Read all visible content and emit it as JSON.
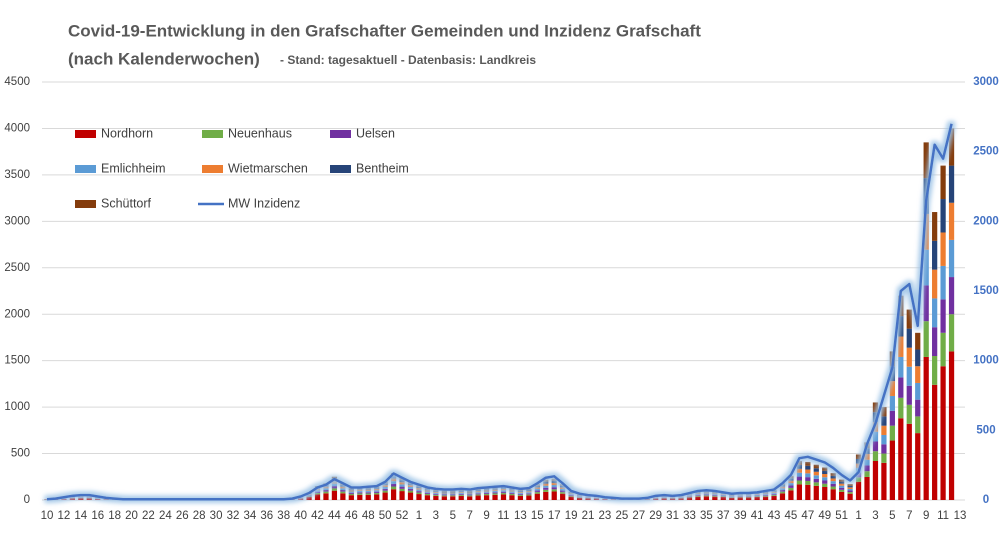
{
  "chart_data": {
    "type": "bar",
    "title": "Covid-19-Entwicklung  in den Grafschafter Gemeinden und Inzidenz Grafschaft",
    "title_line2": "(nach Kalenderwochen)",
    "subtitle": " - Stand: tagesaktuell - Datenbasis: Landkreis",
    "stacked": true,
    "grid": true,
    "legend": "upper left",
    "categories": [
      "10",
      null,
      "12",
      null,
      "14",
      null,
      "16",
      null,
      "18",
      null,
      "20",
      null,
      "22",
      null,
      "24",
      null,
      "26",
      null,
      "28",
      null,
      "30",
      null,
      "32",
      null,
      "34",
      null,
      "36",
      null,
      "38",
      null,
      "40",
      null,
      "42",
      null,
      "44",
      null,
      "46",
      null,
      "48",
      null,
      "50",
      null,
      "52",
      null,
      "1",
      null,
      "3",
      null,
      "5",
      null,
      "7",
      null,
      "9",
      null,
      "11",
      null,
      "13",
      null,
      "15",
      null,
      "17",
      null,
      "19",
      null,
      "21",
      null,
      "23",
      null,
      "25",
      null,
      "27",
      null,
      "29",
      null,
      "31",
      null,
      "33",
      null,
      "35",
      null,
      "37",
      null,
      "39",
      null,
      "41",
      null,
      "43",
      null,
      "45",
      null,
      "47",
      null,
      "49",
      null,
      "51",
      null,
      "1",
      null,
      "3",
      null,
      "5",
      null,
      "7",
      null,
      "9",
      null,
      "11",
      null,
      "13"
    ],
    "ylim": [
      0,
      4500
    ],
    "yticks": [
      0,
      500,
      1000,
      1500,
      2000,
      2500,
      3000,
      3500,
      4000,
      4500
    ],
    "y2lim": [
      0,
      3000
    ],
    "y2ticks": [
      0,
      500,
      1000,
      1500,
      2000,
      2500,
      3000
    ],
    "series": [
      {
        "name": "Nordhorn",
        "color": "#c00000",
        "values": [
          4,
          8,
          12,
          20,
          20,
          20,
          12,
          8,
          4,
          4,
          4,
          4,
          4,
          4,
          4,
          4,
          4,
          4,
          4,
          4,
          4,
          4,
          4,
          4,
          4,
          4,
          4,
          4,
          4,
          8,
          16,
          32,
          60,
          72,
          100,
          72,
          52,
          56,
          56,
          60,
          80,
          116,
          96,
          80,
          64,
          52,
          44,
          40,
          40,
          44,
          40,
          48,
          52,
          56,
          60,
          52,
          44,
          48,
          68,
          88,
          92,
          68,
          36,
          24,
          20,
          16,
          12,
          8,
          4,
          4,
          4,
          8,
          16,
          20,
          16,
          20,
          28,
          36,
          40,
          36,
          32,
          24,
          28,
          28,
          32,
          36,
          44,
          72,
          104,
          168,
          164,
          152,
          140,
          116,
          88,
          68,
          196,
          248,
          420,
          400,
          640,
          880,
          820,
          720,
          1540,
          1240,
          1440,
          1600,
          0
        ]
      },
      {
        "name": "Neuenhaus",
        "color": "#70ad47",
        "values": [
          1,
          2,
          3,
          5,
          5,
          5,
          3,
          2,
          1,
          1,
          1,
          1,
          1,
          1,
          1,
          1,
          1,
          1,
          1,
          1,
          1,
          1,
          1,
          1,
          1,
          1,
          1,
          1,
          1,
          2,
          4,
          8,
          15,
          18,
          25,
          18,
          13,
          14,
          14,
          15,
          20,
          29,
          24,
          20,
          16,
          13,
          11,
          10,
          10,
          11,
          10,
          12,
          13,
          14,
          15,
          13,
          11,
          12,
          17,
          22,
          23,
          17,
          9,
          6,
          5,
          4,
          3,
          2,
          1,
          1,
          1,
          2,
          4,
          5,
          4,
          5,
          7,
          9,
          10,
          9,
          8,
          6,
          7,
          7,
          8,
          9,
          11,
          18,
          26,
          42,
          41,
          38,
          35,
          29,
          22,
          17,
          49,
          62,
          105,
          100,
          160,
          220,
          205,
          180,
          385,
          310,
          360,
          400,
          0
        ]
      },
      {
        "name": "Uelsen",
        "color": "#7030a0",
        "values": [
          1,
          2,
          3,
          5,
          5,
          5,
          3,
          2,
          1,
          1,
          1,
          1,
          1,
          1,
          1,
          1,
          1,
          1,
          1,
          1,
          1,
          1,
          1,
          1,
          1,
          1,
          1,
          1,
          1,
          2,
          4,
          8,
          15,
          18,
          25,
          18,
          13,
          14,
          14,
          15,
          20,
          29,
          24,
          20,
          16,
          13,
          11,
          10,
          10,
          11,
          10,
          12,
          13,
          14,
          15,
          13,
          11,
          12,
          17,
          22,
          23,
          17,
          9,
          6,
          5,
          4,
          3,
          2,
          1,
          1,
          1,
          2,
          4,
          5,
          4,
          5,
          7,
          9,
          10,
          9,
          8,
          6,
          7,
          7,
          8,
          9,
          11,
          18,
          26,
          42,
          41,
          38,
          35,
          29,
          22,
          17,
          49,
          62,
          105,
          100,
          160,
          220,
          205,
          180,
          385,
          310,
          360,
          400,
          0
        ]
      },
      {
        "name": "Emlichheim",
        "color": "#5b9bd5",
        "values": [
          1,
          2,
          3,
          5,
          5,
          5,
          3,
          2,
          1,
          1,
          1,
          1,
          1,
          1,
          1,
          1,
          1,
          1,
          1,
          1,
          1,
          1,
          1,
          1,
          1,
          1,
          1,
          1,
          1,
          2,
          4,
          8,
          15,
          18,
          25,
          18,
          13,
          14,
          14,
          15,
          20,
          29,
          24,
          20,
          16,
          13,
          11,
          10,
          10,
          11,
          10,
          12,
          13,
          14,
          15,
          13,
          11,
          12,
          17,
          22,
          23,
          17,
          9,
          6,
          5,
          4,
          3,
          2,
          1,
          1,
          1,
          2,
          4,
          5,
          4,
          5,
          7,
          9,
          10,
          9,
          8,
          6,
          7,
          7,
          8,
          9,
          11,
          18,
          26,
          42,
          41,
          38,
          35,
          29,
          22,
          17,
          49,
          62,
          105,
          100,
          160,
          220,
          205,
          180,
          385,
          310,
          360,
          400,
          0
        ]
      },
      {
        "name": "Wietmarschen",
        "color": "#ed7d31",
        "values": [
          1,
          2,
          3,
          5,
          5,
          5,
          3,
          2,
          1,
          1,
          1,
          1,
          1,
          1,
          1,
          1,
          1,
          1,
          1,
          1,
          1,
          1,
          1,
          1,
          1,
          1,
          1,
          1,
          1,
          2,
          4,
          8,
          15,
          18,
          25,
          18,
          13,
          14,
          14,
          15,
          20,
          29,
          24,
          20,
          16,
          13,
          11,
          10,
          10,
          11,
          10,
          12,
          13,
          14,
          15,
          13,
          11,
          12,
          17,
          22,
          23,
          17,
          9,
          6,
          5,
          4,
          3,
          2,
          1,
          1,
          1,
          2,
          4,
          5,
          4,
          5,
          7,
          9,
          10,
          9,
          8,
          6,
          7,
          7,
          8,
          9,
          11,
          18,
          26,
          42,
          41,
          38,
          35,
          29,
          22,
          17,
          49,
          62,
          105,
          100,
          160,
          220,
          205,
          180,
          385,
          310,
          360,
          400,
          0
        ]
      },
      {
        "name": "Bentheim",
        "color": "#264478",
        "values": [
          1,
          2,
          3,
          5,
          5,
          5,
          3,
          2,
          1,
          1,
          1,
          1,
          1,
          1,
          1,
          1,
          1,
          1,
          1,
          1,
          1,
          1,
          1,
          1,
          1,
          1,
          1,
          1,
          1,
          2,
          4,
          8,
          15,
          18,
          25,
          18,
          13,
          14,
          14,
          15,
          20,
          29,
          24,
          20,
          16,
          13,
          11,
          10,
          10,
          11,
          10,
          12,
          13,
          14,
          15,
          13,
          11,
          12,
          17,
          22,
          23,
          17,
          9,
          6,
          5,
          4,
          3,
          2,
          1,
          1,
          1,
          2,
          4,
          5,
          4,
          5,
          7,
          9,
          10,
          9,
          8,
          6,
          7,
          7,
          8,
          9,
          11,
          18,
          26,
          42,
          41,
          38,
          35,
          29,
          22,
          17,
          49,
          62,
          105,
          100,
          160,
          220,
          205,
          180,
          385,
          310,
          360,
          400,
          0
        ]
      },
      {
        "name": "Schüttorf",
        "color": "#843c0c",
        "values": [
          1,
          2,
          3,
          5,
          5,
          5,
          3,
          2,
          1,
          1,
          1,
          1,
          1,
          1,
          1,
          1,
          1,
          1,
          1,
          1,
          1,
          1,
          1,
          1,
          1,
          1,
          1,
          1,
          1,
          2,
          4,
          8,
          15,
          18,
          25,
          18,
          13,
          14,
          14,
          15,
          20,
          29,
          24,
          20,
          16,
          13,
          11,
          10,
          10,
          11,
          10,
          12,
          13,
          14,
          15,
          13,
          11,
          12,
          17,
          22,
          23,
          17,
          9,
          6,
          5,
          4,
          3,
          2,
          1,
          1,
          1,
          2,
          4,
          5,
          4,
          5,
          7,
          9,
          10,
          9,
          8,
          6,
          7,
          7,
          8,
          9,
          11,
          18,
          26,
          42,
          41,
          38,
          35,
          29,
          22,
          17,
          49,
          62,
          105,
          100,
          160,
          220,
          205,
          180,
          385,
          310,
          360,
          400,
          0
        ]
      },
      {
        "name": "MW Inzidenz",
        "color": "#4472c4",
        "type": "line",
        "axis": "y2",
        "values": [
          5,
          10,
          20,
          30,
          35,
          35,
          25,
          15,
          10,
          5,
          5,
          5,
          5,
          5,
          5,
          5,
          5,
          5,
          5,
          5,
          5,
          5,
          5,
          5,
          5,
          5,
          5,
          5,
          5,
          10,
          25,
          50,
          90,
          110,
          150,
          120,
          90,
          90,
          95,
          100,
          130,
          190,
          160,
          130,
          110,
          90,
          80,
          75,
          75,
          80,
          75,
          85,
          90,
          95,
          100,
          90,
          80,
          85,
          120,
          160,
          170,
          120,
          65,
          45,
          35,
          30,
          20,
          15,
          10,
          10,
          10,
          15,
          30,
          35,
          30,
          35,
          50,
          65,
          70,
          65,
          55,
          45,
          50,
          50,
          55,
          65,
          75,
          120,
          180,
          300,
          310,
          290,
          270,
          230,
          180,
          140,
          200,
          400,
          550,
          750,
          950,
          1500,
          1550,
          1250,
          2150,
          2550,
          2450,
          2700,
          null
        ]
      }
    ]
  }
}
